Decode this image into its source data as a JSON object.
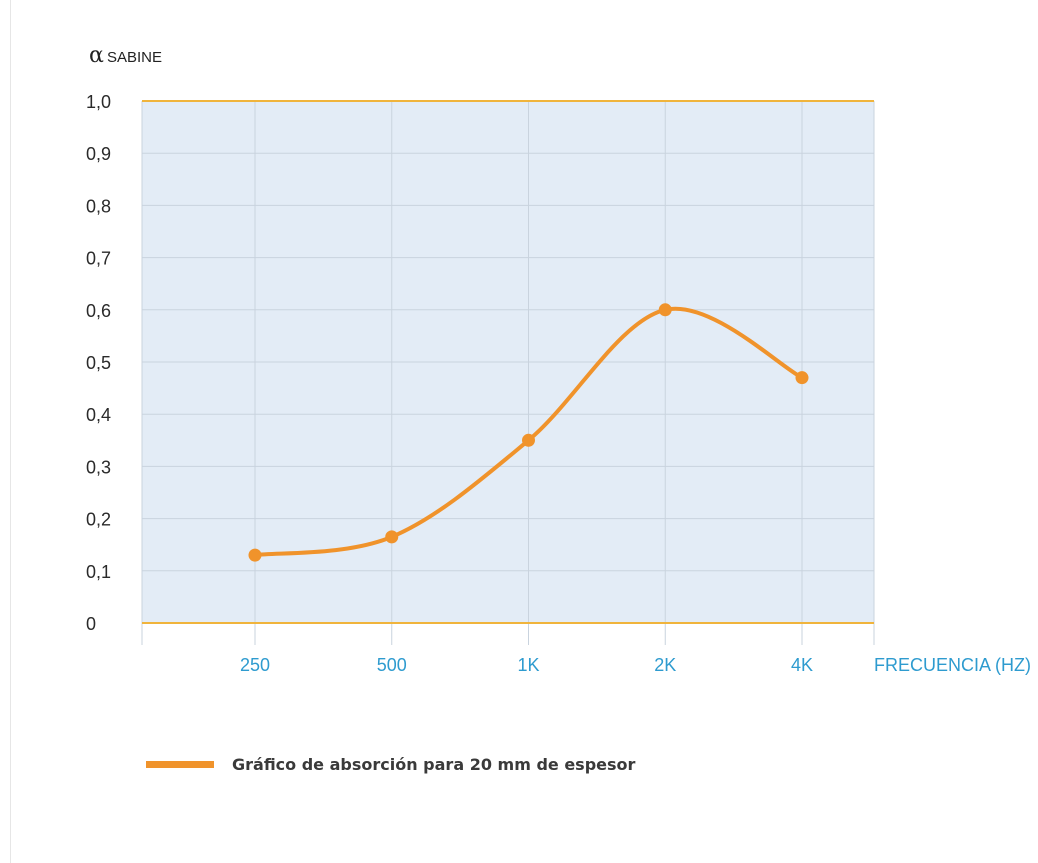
{
  "chart_data": {
    "type": "line",
    "title": "",
    "ylabel_symbol": "α",
    "ylabel": "SABINE",
    "xlabel": "FRECUENCIA (HZ)",
    "categories": [
      "250",
      "500",
      "1K",
      "2K",
      "4K"
    ],
    "series": [
      {
        "name": "Gráfico de absorción para 20 mm de espesor",
        "values": [
          0.13,
          0.165,
          0.35,
          0.6,
          0.47
        ]
      }
    ],
    "ylim": [
      0,
      1.0
    ],
    "yticks": [
      "0",
      "0,1",
      "0,2",
      "0,3",
      "0,4",
      "0,5",
      "0,6",
      "0,7",
      "0,8",
      "0,9",
      "1,0"
    ],
    "grid": true,
    "smooth": true,
    "legend_position": "bottom-left"
  },
  "colors": {
    "series": "#f0932b",
    "plot_background": "#e3ecf6",
    "grid": "#c9d3de",
    "axis_lines": "#f0b43c",
    "x_tick_text": "#2e9bcf"
  }
}
